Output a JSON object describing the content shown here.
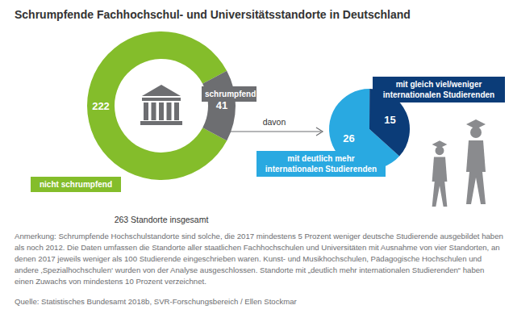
{
  "chart_data": [
    {
      "type": "donut",
      "title": "Schrumpfende Fachhochschul- und Universitätsstandorte in Deutschland",
      "categories": [
        "nicht schrumpfend",
        "schrumpfend"
      ],
      "values": [
        222,
        41
      ],
      "colors": [
        "#84bd2b",
        "#6d6e71"
      ],
      "data_labels": true,
      "annotations": [
        "263 Standorte insgesamt",
        "Anmerkung: Schrumpfende Hochschulstandorte sind solche, die 2017 mindestens 5 Prozent weniger deutsche Studierende ausgebildet haben als noch 2012. Die Daten umfassen die Standorte aller staatlichen Fachhochschulen und Universitäten mit Ausnahme von vier Standorten, an denen 2017 jeweils weniger als 100 Studierende eingeschrieben waren. Kunst- und Musikhochschulen, Pädagogische Hochschulen und andere ‚Spezialhochschulen‘ wurden von der Analyse ausgeschlossen. Standorte mit „deutlich mehr internationalen Studierenden“ haben einen Zuwachs von mindestens 10 Prozent verzeichnet.",
        "Quelle: Statistisches Bundesamt 2018b, SVR-Forschungsbereich / Ellen Stockmar"
      ]
    },
    {
      "type": "pie",
      "categories": [
        "mit deutlich mehr internationalen Studierenden",
        "mit gleich viel/weniger internationalen Studierenden"
      ],
      "values": [
        26,
        15
      ],
      "colors": [
        "#29a9e1",
        "#0b3c78"
      ],
      "data_labels": true,
      "annotations": [
        "davon"
      ]
    }
  ]
}
